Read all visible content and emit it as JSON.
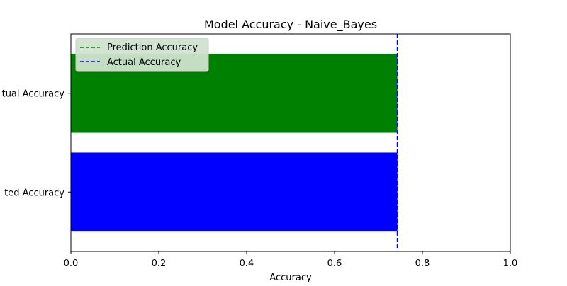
{
  "chart_data": {
    "type": "bar",
    "orientation": "horizontal",
    "title": "Model Accuracy - Naive_Bayes",
    "xlabel": "Accuracy",
    "ylabel": "",
    "xlim": [
      0,
      1.0
    ],
    "xticks": [
      "0.0",
      "0.2",
      "0.4",
      "0.6",
      "0.8",
      "1.0"
    ],
    "categories": [
      "Predicted Accuracy",
      "Actual Accuracy"
    ],
    "category_labels_visible": [
      "ted Accuracy",
      "tual Accuracy"
    ],
    "values": [
      0.743,
      0.743
    ],
    "bar_colors": [
      "#0000ff",
      "#008000"
    ],
    "reference_lines": [
      {
        "name": "Prediction Accuracy",
        "x": 0.743,
        "color": "#008000",
        "style": "dashed"
      },
      {
        "name": "Actual Accuracy",
        "x": 0.743,
        "color": "#0000ff",
        "style": "dashed"
      }
    ],
    "legend": {
      "placement": "top-left",
      "entries": [
        {
          "label": "Prediction Accuracy",
          "color": "#008000",
          "style": "dashed"
        },
        {
          "label": "Actual Accuracy",
          "color": "#0000ff",
          "style": "dashed"
        }
      ]
    },
    "grid": false
  }
}
